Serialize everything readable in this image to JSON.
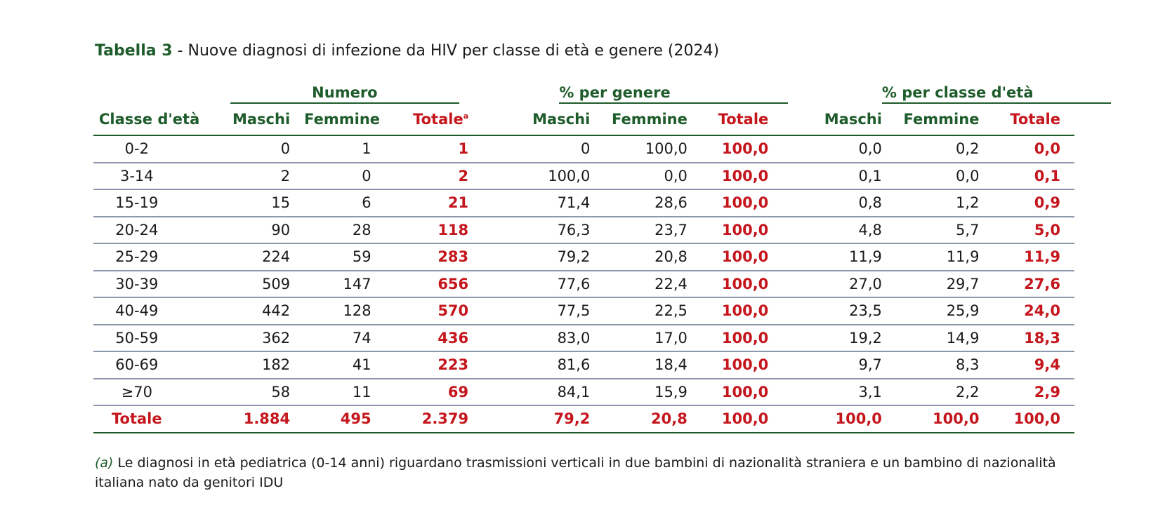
{
  "title": {
    "label": "Tabella 3",
    "separator": " - ",
    "text": "Nuove diagnosi di infezione da HIV per classe di età e genere (2024)"
  },
  "groups": [
    "Numero",
    "% per genere",
    "% per classe d'età"
  ],
  "columns": {
    "first": "Classe d'età",
    "maschi": "Maschi",
    "femmine": "Femmine",
    "totale": "Totale",
    "totale_note": "a"
  },
  "rows": [
    {
      "age": "0-2",
      "n_m": "0",
      "n_f": "1",
      "n_t": "1",
      "g_m": "0",
      "g_f": "100,0",
      "g_t": "100,0",
      "a_m": "0,0",
      "a_f": "0,2",
      "a_t": "0,0"
    },
    {
      "age": "3-14",
      "n_m": "2",
      "n_f": "0",
      "n_t": "2",
      "g_m": "100,0",
      "g_f": "0,0",
      "g_t": "100,0",
      "a_m": "0,1",
      "a_f": "0,0",
      "a_t": "0,1"
    },
    {
      "age": "15-19",
      "n_m": "15",
      "n_f": "6",
      "n_t": "21",
      "g_m": "71,4",
      "g_f": "28,6",
      "g_t": "100,0",
      "a_m": "0,8",
      "a_f": "1,2",
      "a_t": "0,9"
    },
    {
      "age": "20-24",
      "n_m": "90",
      "n_f": "28",
      "n_t": "118",
      "g_m": "76,3",
      "g_f": "23,7",
      "g_t": "100,0",
      "a_m": "4,8",
      "a_f": "5,7",
      "a_t": "5,0"
    },
    {
      "age": "25-29",
      "n_m": "224",
      "n_f": "59",
      "n_t": "283",
      "g_m": "79,2",
      "g_f": "20,8",
      "g_t": "100,0",
      "a_m": "11,9",
      "a_f": "11,9",
      "a_t": "11,9"
    },
    {
      "age": "30-39",
      "n_m": "509",
      "n_f": "147",
      "n_t": "656",
      "g_m": "77,6",
      "g_f": "22,4",
      "g_t": "100,0",
      "a_m": "27,0",
      "a_f": "29,7",
      "a_t": "27,6"
    },
    {
      "age": "40-49",
      "n_m": "442",
      "n_f": "128",
      "n_t": "570",
      "g_m": "77,5",
      "g_f": "22,5",
      "g_t": "100,0",
      "a_m": "23,5",
      "a_f": "25,9",
      "a_t": "24,0"
    },
    {
      "age": "50-59",
      "n_m": "362",
      "n_f": "74",
      "n_t": "436",
      "g_m": "83,0",
      "g_f": "17,0",
      "g_t": "100,0",
      "a_m": "19,2",
      "a_f": "14,9",
      "a_t": "18,3"
    },
    {
      "age": "60-69",
      "n_m": "182",
      "n_f": "41",
      "n_t": "223",
      "g_m": "81,6",
      "g_f": "18,4",
      "g_t": "100,0",
      "a_m": "9,7",
      "a_f": "8,3",
      "a_t": "9,4"
    },
    {
      "age": "≥70",
      "n_m": "58",
      "n_f": "11",
      "n_t": "69",
      "g_m": "84,1",
      "g_f": "15,9",
      "g_t": "100,0",
      "a_m": "3,1",
      "a_f": "2,2",
      "a_t": "2,9"
    }
  ],
  "total": {
    "age": "Totale",
    "n_m": "1.884",
    "n_f": "495",
    "n_t": "2.379",
    "g_m": "79,2",
    "g_f": "20,8",
    "g_t": "100,0",
    "a_m": "100,0",
    "a_f": "100,0",
    "a_t": "100,0"
  },
  "footnote": {
    "mark": "(a)",
    "text": " Le diagnosi in età pediatrica (0-14 anni) riguardano trasmissioni verticali in due bambini di nazionalità straniera e un bambino di nazionalità italiana nato da genitori IDU"
  },
  "colors": {
    "header_green": "#1f5c2b",
    "accent_red": "#c4161c",
    "row_rule": "#8d97ac"
  }
}
